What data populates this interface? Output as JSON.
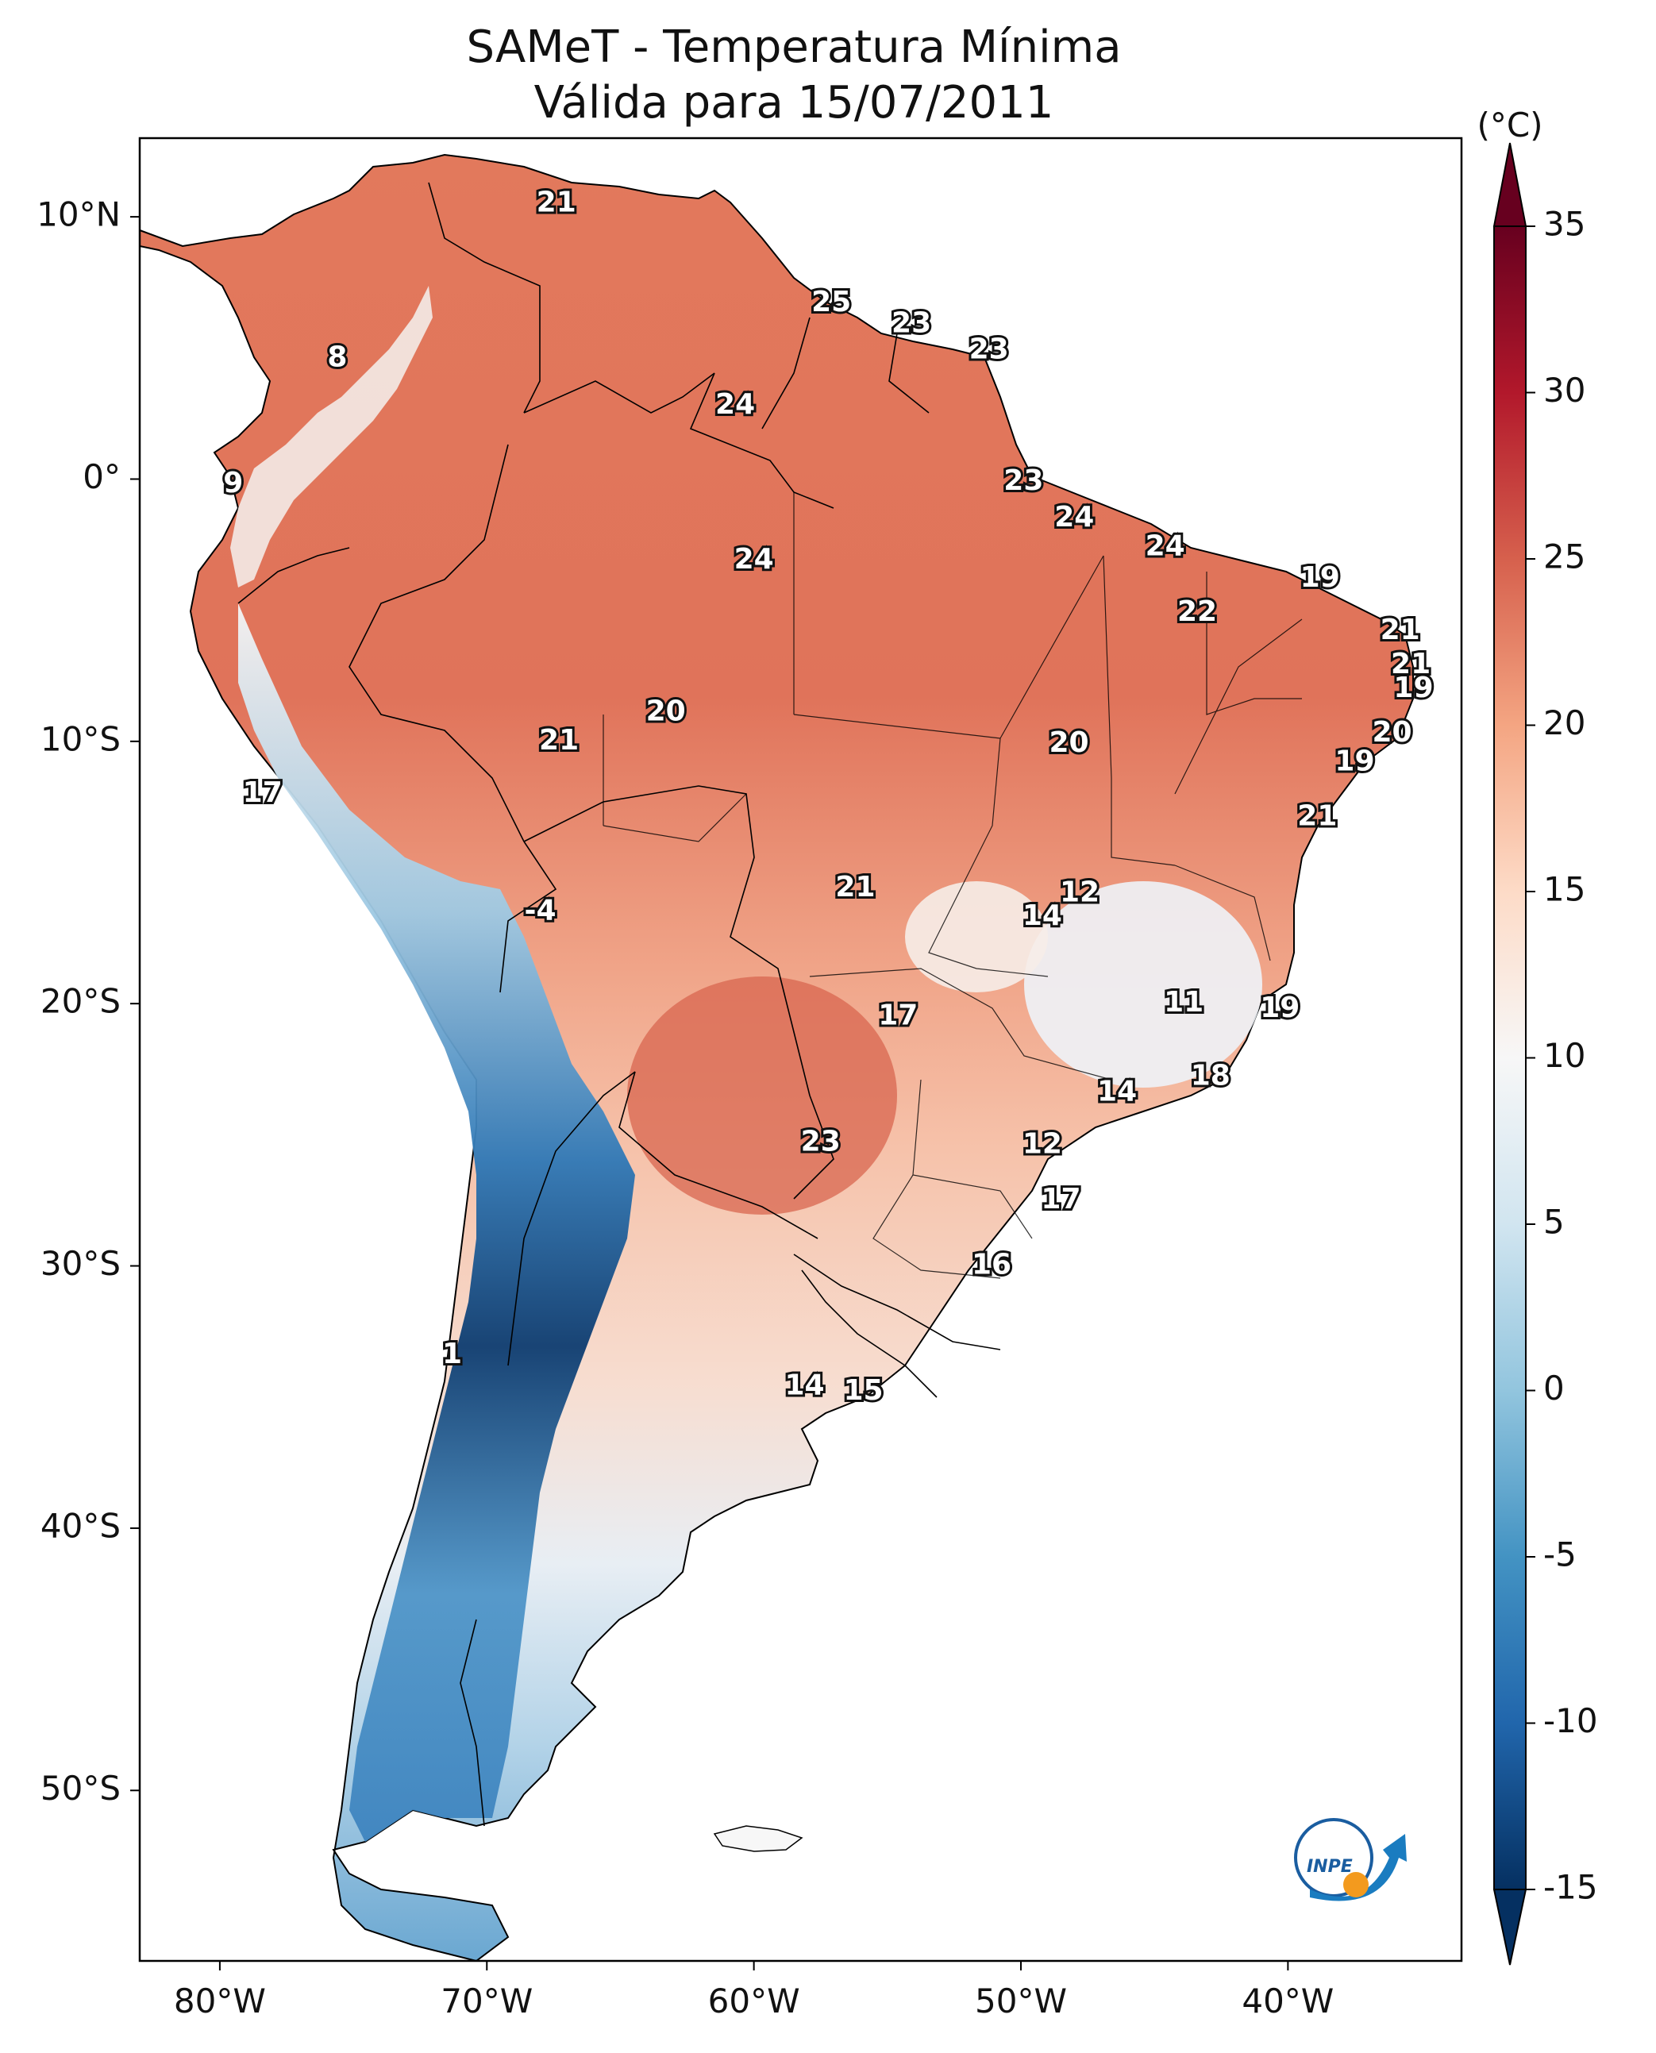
{
  "title_line1": "SAMeT - Temperatura Mínima",
  "title_line2": "Válida para 15/07/2011",
  "colorbar": {
    "unit": "(°C)",
    "ticks": [
      "35",
      "30",
      "25",
      "20",
      "15",
      "10",
      "5",
      "0",
      "-5",
      "-10",
      "-15"
    ],
    "min": -15,
    "max": 35
  },
  "lat_ticks": [
    {
      "label": "10°N",
      "lat": 10
    },
    {
      "label": "0°",
      "lat": 0
    },
    {
      "label": "10°S",
      "lat": -10
    },
    {
      "label": "20°S",
      "lat": -20
    },
    {
      "label": "30°S",
      "lat": -30
    },
    {
      "label": "40°S",
      "lat": -40
    },
    {
      "label": "50°S",
      "lat": -50
    }
  ],
  "lon_ticks": [
    {
      "label": "80°W",
      "lon": -80
    },
    {
      "label": "70°W",
      "lon": -70
    },
    {
      "label": "60°W",
      "lon": -60
    },
    {
      "label": "50°W",
      "lon": -50
    },
    {
      "label": "40°W",
      "lon": -40
    }
  ],
  "extent": {
    "lon_min": -83,
    "lon_max": -33.5,
    "lat_min": -56.5,
    "lat_max": 13
  },
  "stations": [
    {
      "v": "21",
      "lon": -67.4,
      "lat": 10.5
    },
    {
      "v": "25",
      "lon": -57.1,
      "lat": 6.7
    },
    {
      "v": "23",
      "lon": -54.1,
      "lat": 5.9
    },
    {
      "v": "23",
      "lon": -51.2,
      "lat": 4.9
    },
    {
      "v": "8",
      "lon": -75.6,
      "lat": 4.6
    },
    {
      "v": "24",
      "lon": -60.7,
      "lat": 2.8
    },
    {
      "v": "9",
      "lon": -79.5,
      "lat": -0.2
    },
    {
      "v": "23",
      "lon": -49.9,
      "lat": -0.1
    },
    {
      "v": "24",
      "lon": -48.0,
      "lat": -1.5
    },
    {
      "v": "24",
      "lon": -44.6,
      "lat": -2.6
    },
    {
      "v": "24",
      "lon": -60.0,
      "lat": -3.1
    },
    {
      "v": "19",
      "lon": -38.8,
      "lat": -3.8
    },
    {
      "v": "22",
      "lon": -43.4,
      "lat": -5.1
    },
    {
      "v": "21",
      "lon": -35.8,
      "lat": -5.8
    },
    {
      "v": "21",
      "lon": -35.4,
      "lat": -7.1
    },
    {
      "v": "19",
      "lon": -35.3,
      "lat": -8.0
    },
    {
      "v": "20",
      "lon": -63.3,
      "lat": -8.9
    },
    {
      "v": "20",
      "lon": -36.1,
      "lat": -9.7
    },
    {
      "v": "21",
      "lon": -67.3,
      "lat": -10.0
    },
    {
      "v": "20",
      "lon": -48.2,
      "lat": -10.1
    },
    {
      "v": "19",
      "lon": -37.5,
      "lat": -10.8
    },
    {
      "v": "17",
      "lon": -78.4,
      "lat": -12.0
    },
    {
      "v": "21",
      "lon": -38.9,
      "lat": -12.9
    },
    {
      "v": "21",
      "lon": -56.2,
      "lat": -15.6
    },
    {
      "v": "12",
      "lon": -47.8,
      "lat": -15.8
    },
    {
      "v": "14",
      "lon": -49.2,
      "lat": -16.7
    },
    {
      "v": "-4",
      "lon": -68.0,
      "lat": -16.5
    },
    {
      "v": "11",
      "lon": -43.9,
      "lat": -20.0
    },
    {
      "v": "19",
      "lon": -40.3,
      "lat": -20.2
    },
    {
      "v": "17",
      "lon": -54.6,
      "lat": -20.5
    },
    {
      "v": "18",
      "lon": -42.9,
      "lat": -22.8
    },
    {
      "v": "14",
      "lon": -46.4,
      "lat": -23.4
    },
    {
      "v": "23",
      "lon": -57.5,
      "lat": -25.3
    },
    {
      "v": "12",
      "lon": -49.2,
      "lat": -25.4
    },
    {
      "v": "17",
      "lon": -48.5,
      "lat": -27.5
    },
    {
      "v": "16",
      "lon": -51.1,
      "lat": -30.0
    },
    {
      "v": "1",
      "lon": -71.3,
      "lat": -33.4
    },
    {
      "v": "14",
      "lon": -58.1,
      "lat": -34.6
    },
    {
      "v": "15",
      "lon": -55.9,
      "lat": -34.8
    }
  ]
}
